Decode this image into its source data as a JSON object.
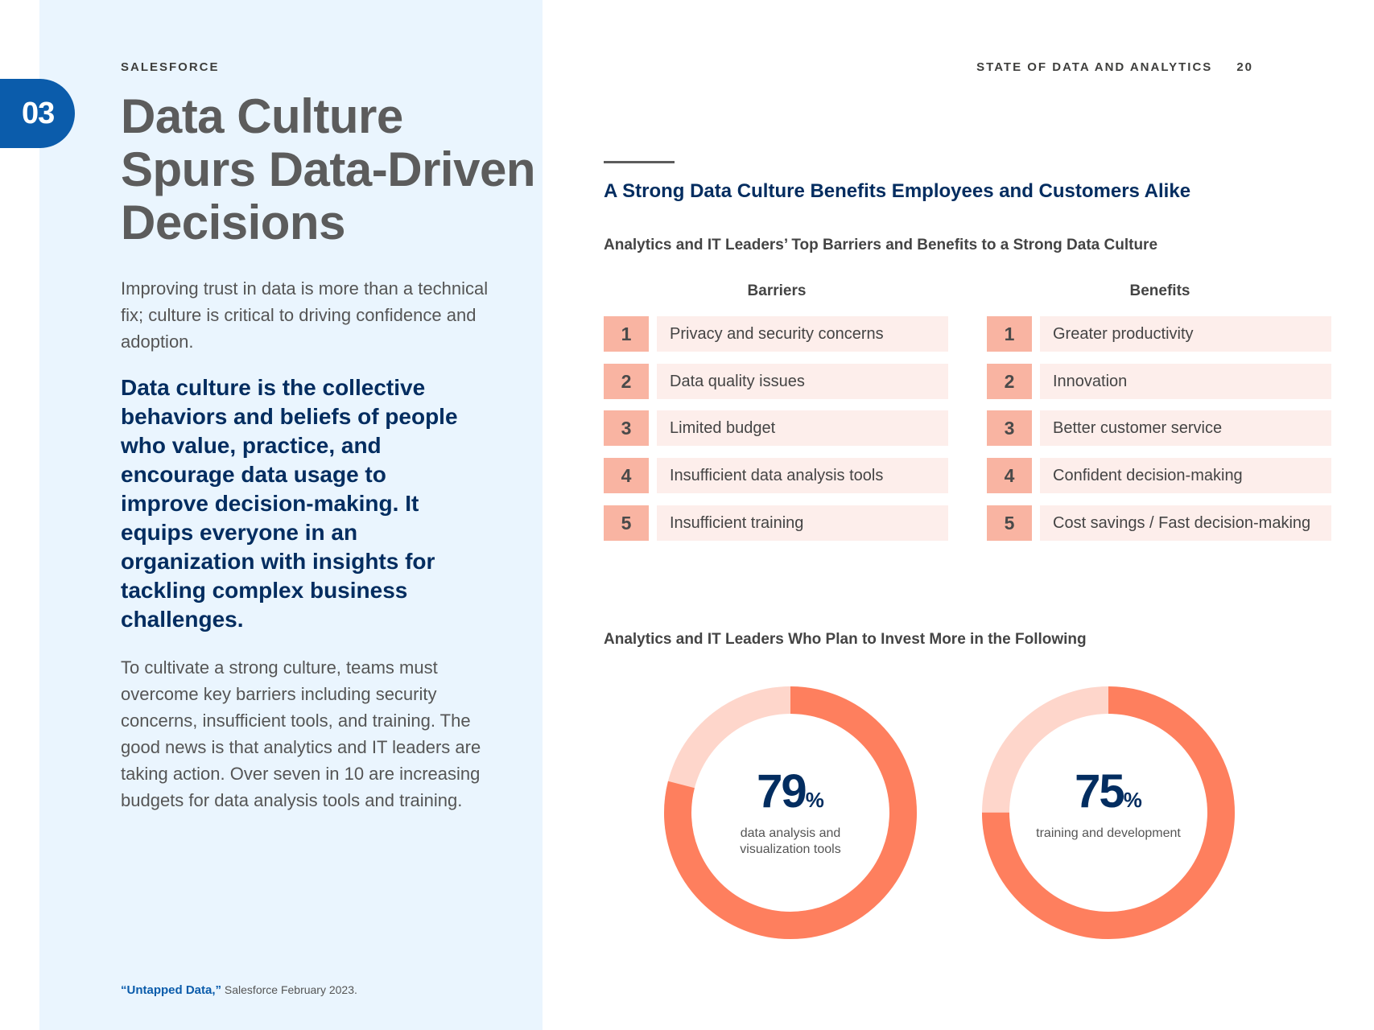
{
  "header": {
    "brand": "SALESFORCE",
    "report_title": "STATE OF DATA AND ANALYTICS",
    "page_number": "20"
  },
  "chapter": {
    "number": "03"
  },
  "left": {
    "title": "Data Culture Spurs Data-Driven Decisions",
    "intro": "Improving trust in data is more than a technical fix; culture is critical to driving confidence and adoption.",
    "callout": "Data culture is the collective behaviors and beliefs of people who value, practice, and encourage data usage to improve decision-making. It equips everyone in an organization with insights for tackling complex business challenges.",
    "body": "To cultivate a strong culture, teams must overcome key barriers including security concerns, insufficient tools, and training. The good news is that analytics and IT leaders are taking action. Over seven in 10 are increasing budgets for data analysis tools and training.",
    "footnote_source": "“Untapped Data,”",
    "footnote_rest": "Salesforce February 2023."
  },
  "colors": {
    "brand_blue": "#0b5cab",
    "navy": "#032d60",
    "coral": "#fe7f5e",
    "coral_light": "#fed6cb",
    "rank_box": "#f9b4a2",
    "rank_label_bg": "#fdeeeb",
    "panel_bg": "#eaf5fe"
  },
  "right": {
    "section_heading": "A Strong Data Culture Benefits Employees and Customers Alike",
    "table_heading": "Analytics and IT Leaders’ Top Barriers and Benefits to a Strong Data Culture",
    "barriers_title": "Barriers",
    "benefits_title": "Benefits",
    "barriers": [
      {
        "rank": "1",
        "label": "Privacy and security concerns"
      },
      {
        "rank": "2",
        "label": "Data quality issues"
      },
      {
        "rank": "3",
        "label": "Limited budget"
      },
      {
        "rank": "4",
        "label": "Insufficient data analysis tools"
      },
      {
        "rank": "5",
        "label": "Insufficient training"
      }
    ],
    "benefits": [
      {
        "rank": "1",
        "label": "Greater productivity"
      },
      {
        "rank": "2",
        "label": "Innovation"
      },
      {
        "rank": "3",
        "label": "Better customer service"
      },
      {
        "rank": "4",
        "label": "Confident decision-making"
      },
      {
        "rank": "5",
        "label": "Cost savings / Fast decision-making"
      }
    ],
    "donut_heading": "Analytics and IT Leaders Who Plan to Invest More in the Following"
  },
  "chart_data": {
    "type": "pie",
    "title": "Analytics and IT Leaders Who Plan to Invest More in the Following",
    "series": [
      {
        "name": "data analysis and visualization tools",
        "value": 79,
        "display": "79",
        "unit": "%"
      },
      {
        "name": "training and development",
        "value": 75,
        "display": "75",
        "unit": "%"
      }
    ]
  }
}
